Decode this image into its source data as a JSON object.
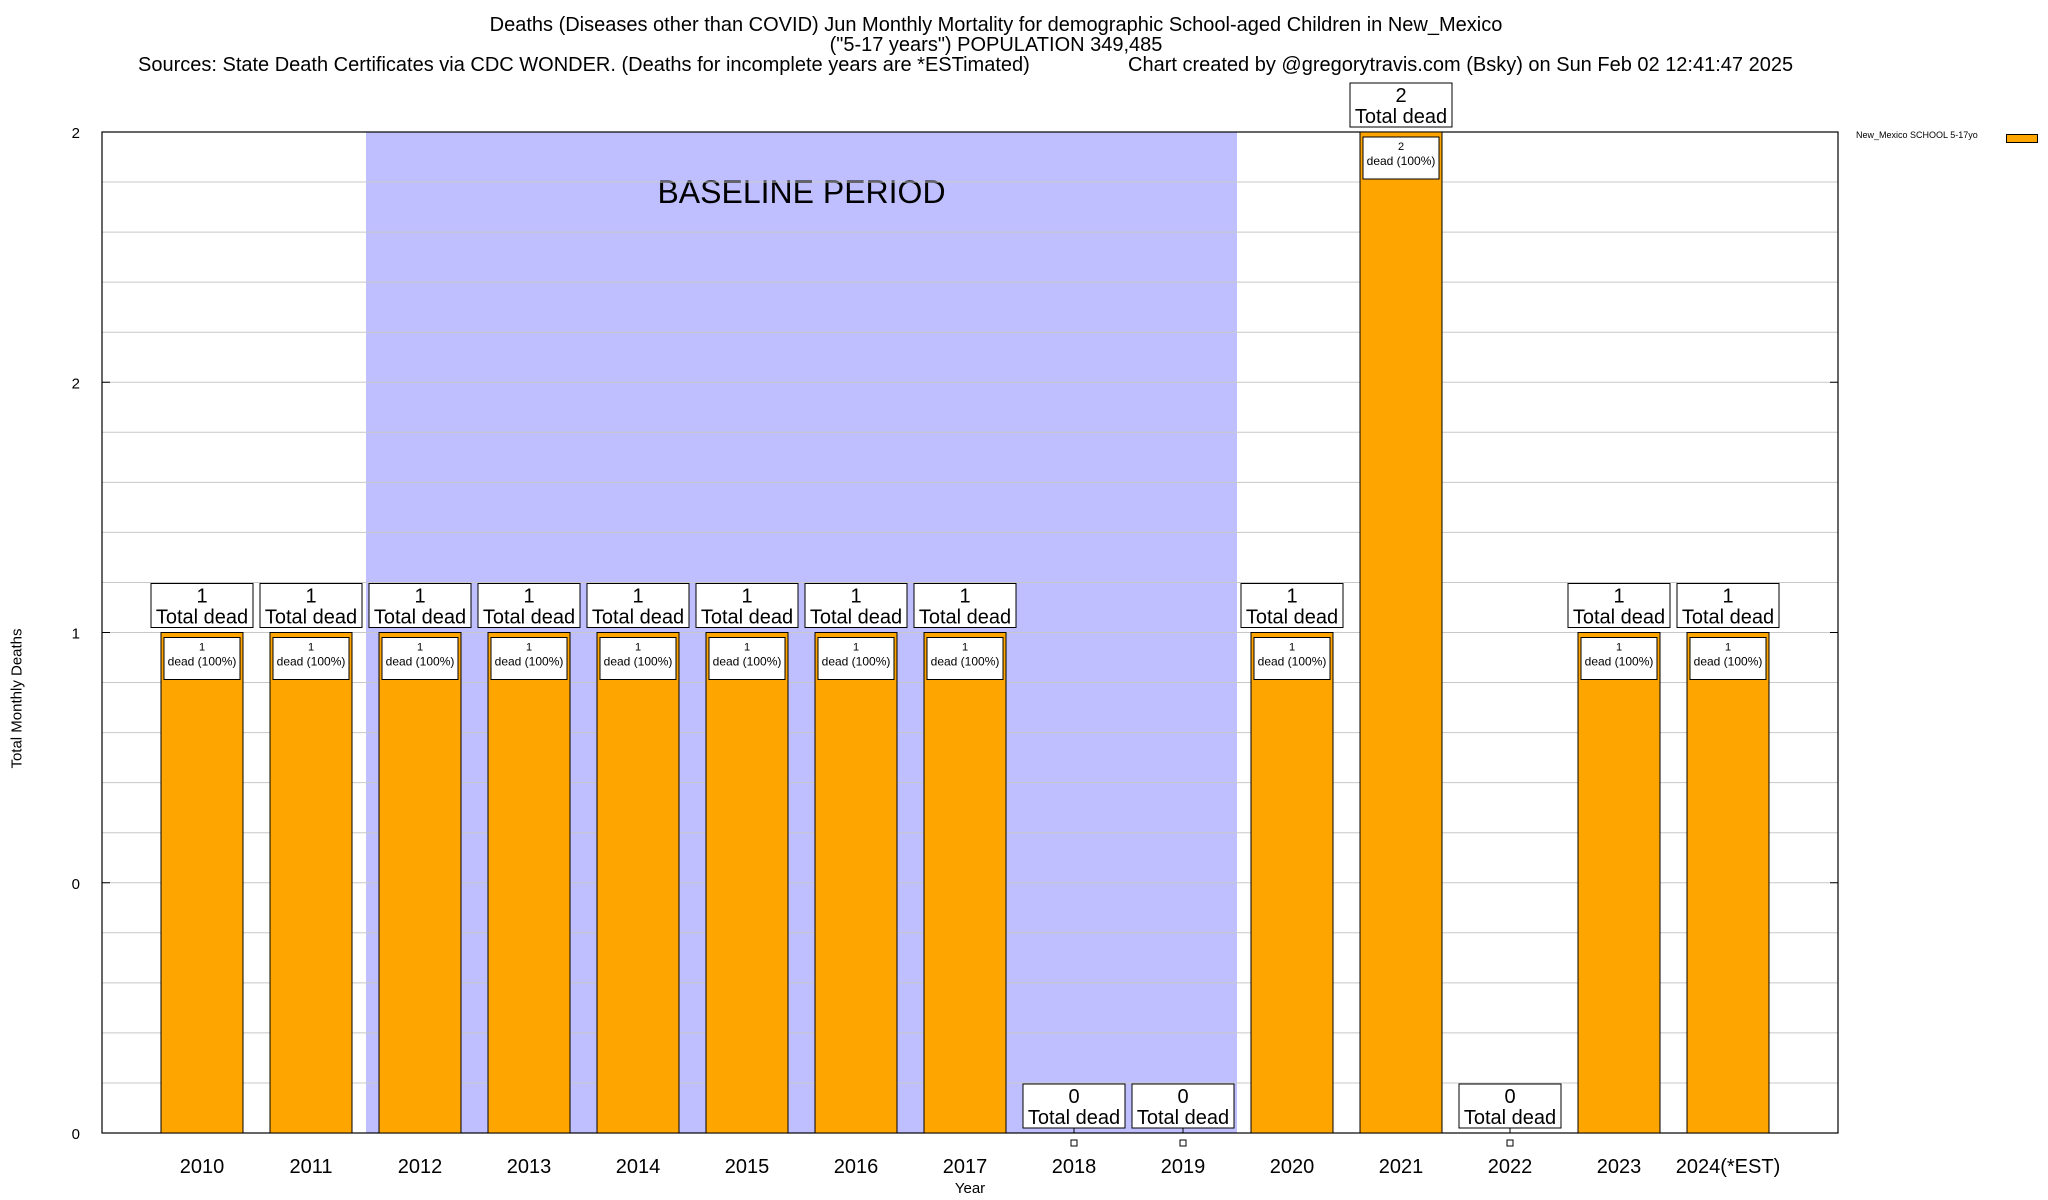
{
  "header": {
    "title_line1": "Deaths (Diseases other than COVID) Jun Monthly Mortality for demographic School-aged Children in New_Mexico",
    "title_line2": "(\"5-17 years\") POPULATION 349,485",
    "sources": "Sources: State Death Certificates via CDC WONDER. (Deaths for incomplete years are *ESTimated)",
    "credit": "Chart created by @gregorytravis.com (Bsky) on Sun Feb 02 12:41:47 2025"
  },
  "chart_data": {
    "type": "bar",
    "categories": [
      "2010",
      "2011",
      "2012",
      "2013",
      "2014",
      "2015",
      "2016",
      "2017",
      "2018",
      "2019",
      "2020",
      "2021",
      "2022",
      "2023",
      "2024(*EST)"
    ],
    "series": [
      {
        "name": "New_Mexico SCHOOL 5-17yo",
        "values": [
          1,
          1,
          1,
          1,
          1,
          1,
          1,
          1,
          0,
          0,
          1,
          2,
          0,
          1,
          1
        ],
        "color": "#FFA500"
      }
    ],
    "total_labels": [
      "1",
      "1",
      "1",
      "1",
      "1",
      "1",
      "1",
      "1",
      "0",
      "0",
      "1",
      "2",
      "0",
      "1",
      "1"
    ],
    "total_suffix": "Total dead",
    "inner_labels": [
      "1",
      "1",
      "1",
      "1",
      "1",
      "1",
      "1",
      "1",
      "",
      "",
      "1",
      "2",
      "",
      "1",
      "1"
    ],
    "inner_suffix": "dead (100%)",
    "xlabel": "Year",
    "ylabel": "Total Monthly Deaths",
    "ylim": [
      0,
      2
    ],
    "ytick_labels": [
      "0",
      "0",
      "1",
      "2",
      "2"
    ],
    "grid": true,
    "legend_placement": "top-right outside",
    "baseline": {
      "label": "BASELINE PERIOD",
      "from": "2012",
      "to": "2019",
      "color": "#BFBFFF"
    }
  }
}
